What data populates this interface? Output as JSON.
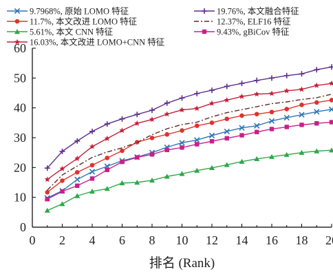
{
  "chart_data": {
    "type": "line",
    "title": "",
    "xlabel": "排名 (Rank)",
    "ylabel": "",
    "xlim": [
      0,
      20
    ],
    "ylim": [
      0,
      60
    ],
    "xticks": [
      0,
      2,
      4,
      6,
      8,
      10,
      12,
      14,
      16,
      18,
      20
    ],
    "yticks": [
      0,
      10,
      20,
      30,
      40,
      50,
      60
    ],
    "grid": false,
    "legend_position": "top",
    "x": [
      1,
      2,
      3,
      4,
      5,
      6,
      7,
      8,
      9,
      10,
      11,
      12,
      13,
      14,
      15,
      16,
      17,
      18,
      19,
      20
    ],
    "series": [
      {
        "name": "9.7968%, 原始 LOMO 特征",
        "color": "#2e75b6",
        "marker": "x",
        "dash": "solid",
        "values": [
          9.8,
          12.2,
          16,
          18.6,
          20.4,
          22.3,
          23.5,
          25,
          26.8,
          28.3,
          29.2,
          30.7,
          32.1,
          33.3,
          34,
          35.6,
          36.7,
          37.7,
          38.7,
          39.5
        ]
      },
      {
        "name": "19.76%, 本文融合特征",
        "color": "#5b2c8f",
        "marker": "plus",
        "dash": "solid",
        "values": [
          19.8,
          25.4,
          28.9,
          32.1,
          34.6,
          36.3,
          37.8,
          39.2,
          41.6,
          43.3,
          44.8,
          45.9,
          47.2,
          48.2,
          49.2,
          50,
          50.8,
          51.4,
          52.8,
          53.7
        ]
      },
      {
        "name": "11.7%, 本文改进 LOMO 特征",
        "color": "#e0332b",
        "marker": "circle",
        "dash": "solid",
        "values": [
          11.7,
          15.6,
          18.4,
          20.8,
          23.2,
          25.6,
          28.5,
          29.9,
          31.1,
          32.4,
          34,
          35,
          36.3,
          37.4,
          37.9,
          38.6,
          39.6,
          41,
          41.8,
          42.6
        ]
      },
      {
        "name": "12.37%, ELF16 特征",
        "color": "#5a2a2a",
        "marker": "none",
        "dash": "dashdot",
        "values": [
          12.4,
          17.5,
          20.5,
          23.4,
          25.2,
          26.6,
          28.4,
          31,
          33,
          34.4,
          35.2,
          37,
          38.4,
          39.4,
          40.4,
          41.4,
          42,
          42.8,
          43.4,
          44.6
        ]
      },
      {
        "name": "5.61%, 本文 CNN 特征",
        "color": "#2ea84a",
        "marker": "triangle",
        "dash": "solid",
        "values": [
          5.6,
          7.8,
          10.5,
          12,
          12.9,
          14.8,
          15,
          15.7,
          17,
          17.9,
          19,
          19.9,
          20.9,
          22,
          22.9,
          23.6,
          24.3,
          25,
          25.5,
          25.8
        ]
      },
      {
        "name": "9.43%, gBiCov 特征",
        "color": "#c8208a",
        "marker": "square",
        "dash": "solid",
        "values": [
          9.4,
          12,
          13.9,
          16.3,
          19.2,
          21.9,
          23.4,
          24.4,
          25.9,
          26.7,
          27.8,
          28.8,
          29.8,
          30.8,
          31.9,
          32.9,
          33.6,
          34.3,
          34.8,
          35.2
        ]
      },
      {
        "name": "16.03%, 本文改进 LOMO+CNN 特征",
        "color": "#c4203a",
        "marker": "star",
        "dash": "solid",
        "values": [
          16,
          19.6,
          23,
          27,
          29.7,
          32.4,
          34.8,
          36.1,
          37.9,
          39.3,
          39.8,
          41.5,
          42.6,
          43.8,
          44.6,
          44.8,
          45.7,
          46.2,
          47.5,
          48.2
        ]
      }
    ]
  }
}
